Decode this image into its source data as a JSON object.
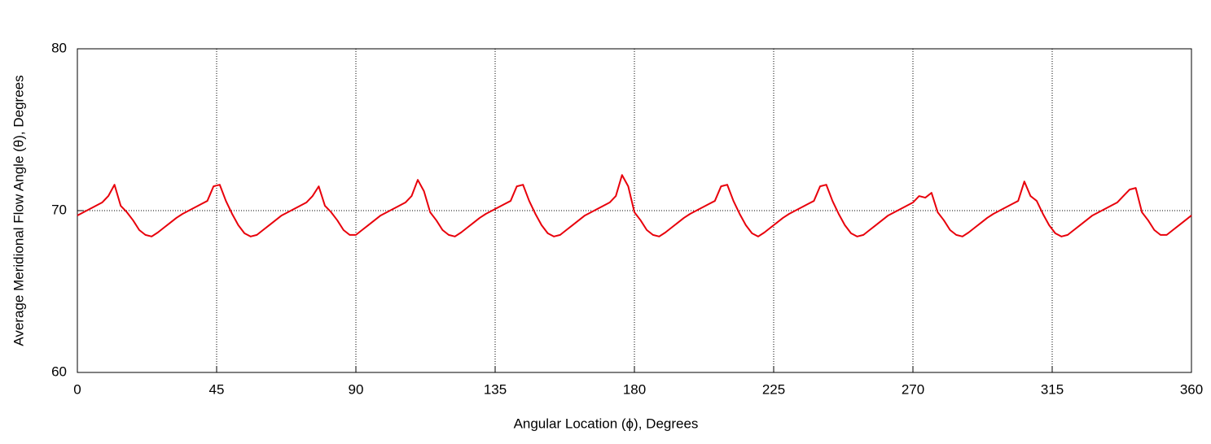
{
  "chart_data": {
    "type": "line",
    "xlabel": "Angular Location (ϕ), Degrees",
    "ylabel": "Average Meridional Flow Angle (θ), Degrees",
    "x": [
      0,
      2,
      4,
      6,
      8,
      10,
      12,
      14,
      16,
      18,
      20,
      22,
      24,
      26,
      28,
      30,
      32,
      34,
      36,
      38,
      40,
      42,
      44,
      46,
      48,
      50,
      52,
      54,
      56,
      58,
      60,
      62,
      64,
      66,
      68,
      70,
      72,
      74,
      76,
      78,
      80,
      82,
      84,
      86,
      88,
      90,
      92,
      94,
      96,
      98,
      100,
      102,
      104,
      106,
      108,
      110,
      112,
      114,
      116,
      118,
      120,
      122,
      124,
      126,
      128,
      130,
      132,
      134,
      136,
      138,
      140,
      142,
      144,
      146,
      148,
      150,
      152,
      154,
      156,
      158,
      160,
      162,
      164,
      166,
      168,
      170,
      172,
      174,
      176,
      178,
      180,
      182,
      184,
      186,
      188,
      190,
      192,
      194,
      196,
      198,
      200,
      202,
      204,
      206,
      208,
      210,
      212,
      214,
      216,
      218,
      220,
      222,
      224,
      226,
      228,
      230,
      232,
      234,
      236,
      238,
      240,
      242,
      244,
      246,
      248,
      250,
      252,
      254,
      256,
      258,
      260,
      262,
      264,
      266,
      268,
      270,
      272,
      274,
      276,
      278,
      280,
      282,
      284,
      286,
      288,
      290,
      292,
      294,
      296,
      298,
      300,
      302,
      304,
      306,
      308,
      310,
      312,
      314,
      316,
      318,
      320,
      322,
      324,
      326,
      328,
      330,
      332,
      334,
      336,
      338,
      340,
      342,
      344,
      346,
      348,
      350,
      352,
      354,
      356,
      358,
      360
    ],
    "values": [
      69.7,
      69.9,
      70.1,
      70.3,
      70.5,
      70.9,
      71.6,
      70.3,
      69.9,
      69.4,
      68.8,
      68.5,
      68.4,
      68.65,
      68.95,
      69.25,
      69.55,
      69.8,
      70.0,
      70.2,
      70.4,
      70.6,
      71.5,
      71.6,
      70.6,
      69.8,
      69.1,
      68.6,
      68.4,
      68.5,
      68.8,
      69.1,
      69.4,
      69.7,
      69.9,
      70.1,
      70.3,
      70.5,
      70.9,
      71.5,
      70.3,
      69.9,
      69.4,
      68.8,
      68.5,
      68.5,
      68.8,
      69.1,
      69.4,
      69.7,
      69.9,
      70.1,
      70.3,
      70.5,
      70.9,
      71.9,
      71.2,
      69.9,
      69.4,
      68.8,
      68.5,
      68.4,
      68.65,
      68.95,
      69.25,
      69.55,
      69.8,
      70.0,
      70.2,
      70.4,
      70.6,
      71.5,
      71.6,
      70.6,
      69.8,
      69.1,
      68.6,
      68.4,
      68.5,
      68.8,
      69.1,
      69.4,
      69.7,
      69.9,
      70.1,
      70.3,
      70.5,
      70.9,
      72.2,
      71.5,
      69.9,
      69.4,
      68.8,
      68.5,
      68.4,
      68.65,
      68.95,
      69.25,
      69.55,
      69.8,
      70.0,
      70.2,
      70.4,
      70.6,
      71.5,
      71.6,
      70.6,
      69.8,
      69.1,
      68.6,
      68.4,
      68.65,
      68.95,
      69.25,
      69.55,
      69.8,
      70.0,
      70.2,
      70.4,
      70.6,
      71.5,
      71.6,
      70.6,
      69.8,
      69.1,
      68.6,
      68.4,
      68.5,
      68.8,
      69.1,
      69.4,
      69.7,
      69.9,
      70.1,
      70.3,
      70.5,
      70.9,
      70.8,
      71.1,
      69.9,
      69.4,
      68.8,
      68.5,
      68.4,
      68.65,
      68.95,
      69.25,
      69.55,
      69.8,
      70.0,
      70.2,
      70.4,
      70.6,
      71.8,
      70.9,
      70.6,
      69.8,
      69.1,
      68.6,
      68.4,
      68.5,
      68.8,
      69.1,
      69.4,
      69.7,
      69.9,
      70.1,
      70.3,
      70.5,
      70.9,
      71.3,
      71.4,
      69.9,
      69.4,
      68.8,
      68.5,
      68.5,
      68.8,
      69.1,
      69.4,
      69.7
    ],
    "color": "#e8000b",
    "xlim": [
      0,
      360
    ],
    "xticks": [
      0,
      45,
      90,
      135,
      180,
      225,
      270,
      315,
      360
    ],
    "ylim": [
      60,
      80
    ],
    "yticks": [
      60,
      70,
      80
    ],
    "grid": true
  }
}
